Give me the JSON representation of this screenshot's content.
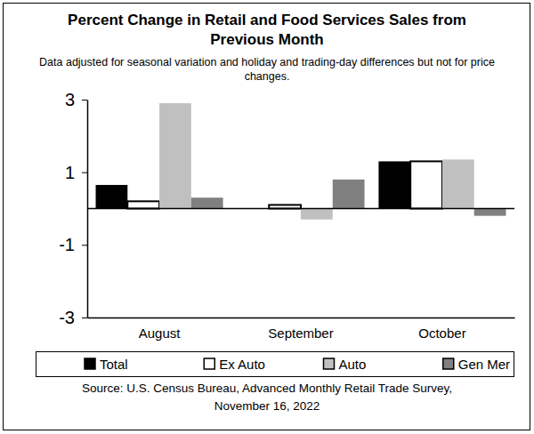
{
  "chart_data": {
    "type": "bar",
    "title": "Percent Change in Retail and Food Services Sales from Previous Month",
    "subtitle": "Data adjusted for seasonal variation and holiday and trading-day differences but not for price changes.",
    "source": "Source: U.S. Census Bureau, Advanced Monthly Retail Trade Survey, November 16, 2022",
    "categories": [
      "August",
      "September",
      "October"
    ],
    "series": [
      {
        "name": "Total",
        "color": "#000000",
        "values": [
          0.65,
          0.0,
          1.3
        ]
      },
      {
        "name": "Ex Auto",
        "color": "#ffffff",
        "values": [
          0.2,
          0.1,
          1.3
        ]
      },
      {
        "name": "Auto",
        "color": "#c0c0c0",
        "values": [
          2.9,
          -0.3,
          1.35
        ]
      },
      {
        "name": "Gen Mer",
        "color": "#808080",
        "values": [
          0.3,
          0.8,
          -0.2
        ]
      }
    ],
    "ylim": [
      -3,
      3
    ],
    "yticks": [
      -3,
      -1,
      1,
      3
    ],
    "grid": false,
    "legend": "bottom"
  }
}
